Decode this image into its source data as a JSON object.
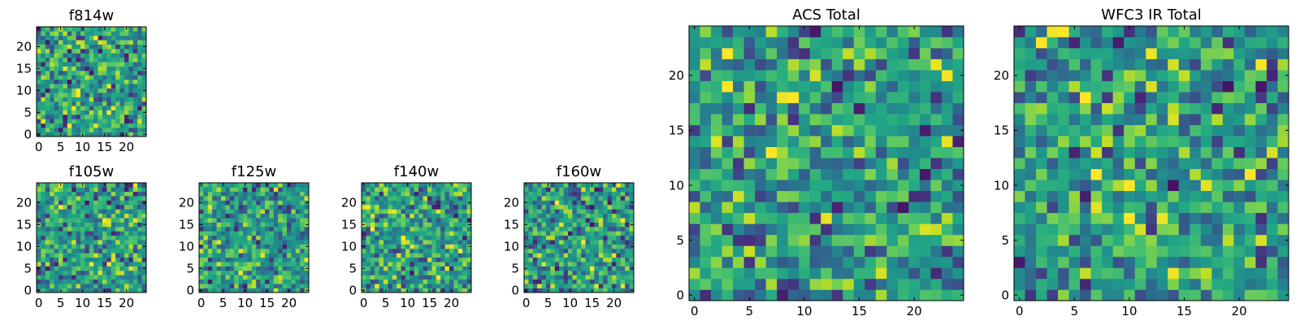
{
  "chart_data": [
    {
      "type": "heatmap",
      "title": "f814w",
      "grid_size": 25,
      "seed": 11,
      "xlim": [
        -0.5,
        24.5
      ],
      "ylim": [
        -0.5,
        24.5
      ],
      "xticks": [
        0,
        5,
        10,
        15,
        20
      ],
      "yticks": [
        0,
        5,
        10,
        15,
        20
      ],
      "colormap": "viridis",
      "grid": false
    },
    {
      "type": "heatmap",
      "title": "f105w",
      "grid_size": 25,
      "seed": 23,
      "xlim": [
        -0.5,
        24.5
      ],
      "ylim": [
        -0.5,
        24.5
      ],
      "xticks": [
        0,
        5,
        10,
        15,
        20
      ],
      "yticks": [
        0,
        5,
        10,
        15,
        20
      ],
      "colormap": "viridis",
      "grid": false
    },
    {
      "type": "heatmap",
      "title": "f125w",
      "grid_size": 25,
      "seed": 37,
      "xlim": [
        -0.5,
        24.5
      ],
      "ylim": [
        -0.5,
        24.5
      ],
      "xticks": [
        0,
        5,
        10,
        15,
        20
      ],
      "yticks": [
        0,
        5,
        10,
        15,
        20
      ],
      "colormap": "viridis",
      "grid": false
    },
    {
      "type": "heatmap",
      "title": "f140w",
      "grid_size": 25,
      "seed": 41,
      "xlim": [
        -0.5,
        24.5
      ],
      "ylim": [
        -0.5,
        24.5
      ],
      "xticks": [
        0,
        5,
        10,
        15,
        20
      ],
      "yticks": [
        0,
        5,
        10,
        15,
        20
      ],
      "colormap": "viridis",
      "grid": false
    },
    {
      "type": "heatmap",
      "title": "f160w",
      "grid_size": 25,
      "seed": 53,
      "xlim": [
        -0.5,
        24.5
      ],
      "ylim": [
        -0.5,
        24.5
      ],
      "xticks": [
        0,
        5,
        10,
        15,
        20
      ],
      "yticks": [
        0,
        5,
        10,
        15,
        20
      ],
      "colormap": "viridis",
      "grid": false
    },
    {
      "type": "heatmap",
      "title": "ACS Total",
      "grid_size": 25,
      "seed": 67,
      "xlim": [
        -0.5,
        24.5
      ],
      "ylim": [
        -0.5,
        24.5
      ],
      "xticks": [
        0,
        5,
        10,
        15,
        20
      ],
      "yticks": [
        0,
        5,
        10,
        15,
        20
      ],
      "colormap": "viridis",
      "grid": false
    },
    {
      "type": "heatmap",
      "title": "WFC3 IR Total",
      "grid_size": 25,
      "seed": 79,
      "xlim": [
        -0.5,
        24.5
      ],
      "ylim": [
        -0.5,
        24.5
      ],
      "xticks": [
        0,
        5,
        10,
        15,
        20
      ],
      "yticks": [
        0,
        5,
        10,
        15,
        20
      ],
      "colormap": "viridis",
      "grid": false
    }
  ]
}
